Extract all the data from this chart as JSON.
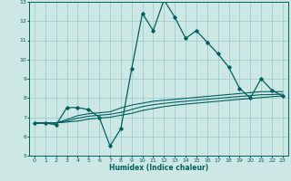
{
  "xlabel": "Humidex (Indice chaleur)",
  "xlim": [
    -0.5,
    23.5
  ],
  "ylim": [
    5,
    13
  ],
  "yticks": [
    5,
    6,
    7,
    8,
    9,
    10,
    11,
    12,
    13
  ],
  "xticks": [
    0,
    1,
    2,
    3,
    4,
    5,
    6,
    7,
    8,
    9,
    10,
    11,
    12,
    13,
    14,
    15,
    16,
    17,
    18,
    19,
    20,
    21,
    22,
    23
  ],
  "bg_color": "#cde8e4",
  "grid_color": "#9ecfca",
  "line_color": "#005f5f",
  "line1_x": [
    0,
    1,
    2,
    3,
    4,
    5,
    6,
    7,
    8,
    9,
    10,
    11,
    12,
    13,
    14,
    15,
    16,
    17,
    18,
    19,
    20,
    21,
    22,
    23
  ],
  "line1_y": [
    6.7,
    6.7,
    6.6,
    7.5,
    7.5,
    7.4,
    7.0,
    5.5,
    6.4,
    9.5,
    12.4,
    11.5,
    13.1,
    12.2,
    11.1,
    11.5,
    10.9,
    10.3,
    9.6,
    8.5,
    8.0,
    9.0,
    8.4,
    8.1
  ],
  "line2_x": [
    0,
    1,
    2,
    3,
    4,
    5,
    6,
    7,
    8,
    9,
    10,
    11,
    12,
    13,
    14,
    15,
    16,
    17,
    18,
    19,
    20,
    21,
    22,
    23
  ],
  "line2_y": [
    6.7,
    6.7,
    6.7,
    6.75,
    6.8,
    6.9,
    6.95,
    7.0,
    7.1,
    7.2,
    7.35,
    7.45,
    7.55,
    7.62,
    7.68,
    7.73,
    7.78,
    7.83,
    7.88,
    7.93,
    7.97,
    8.02,
    8.07,
    8.1
  ],
  "line3_x": [
    0,
    1,
    2,
    3,
    4,
    5,
    6,
    7,
    8,
    9,
    10,
    11,
    12,
    13,
    14,
    15,
    16,
    17,
    18,
    19,
    20,
    21,
    22,
    23
  ],
  "line3_y": [
    6.7,
    6.7,
    6.7,
    6.8,
    6.95,
    7.05,
    7.1,
    7.15,
    7.25,
    7.4,
    7.55,
    7.65,
    7.72,
    7.78,
    7.83,
    7.88,
    7.93,
    7.98,
    8.03,
    8.08,
    8.12,
    8.17,
    8.18,
    8.2
  ],
  "line4_x": [
    0,
    1,
    2,
    3,
    4,
    5,
    6,
    7,
    8,
    9,
    10,
    11,
    12,
    13,
    14,
    15,
    16,
    17,
    18,
    19,
    20,
    21,
    22,
    23
  ],
  "line4_y": [
    6.7,
    6.7,
    6.7,
    6.88,
    7.08,
    7.18,
    7.23,
    7.28,
    7.48,
    7.63,
    7.73,
    7.83,
    7.88,
    7.93,
    7.98,
    8.03,
    8.08,
    8.13,
    8.18,
    8.23,
    8.28,
    8.33,
    8.33,
    8.33
  ]
}
